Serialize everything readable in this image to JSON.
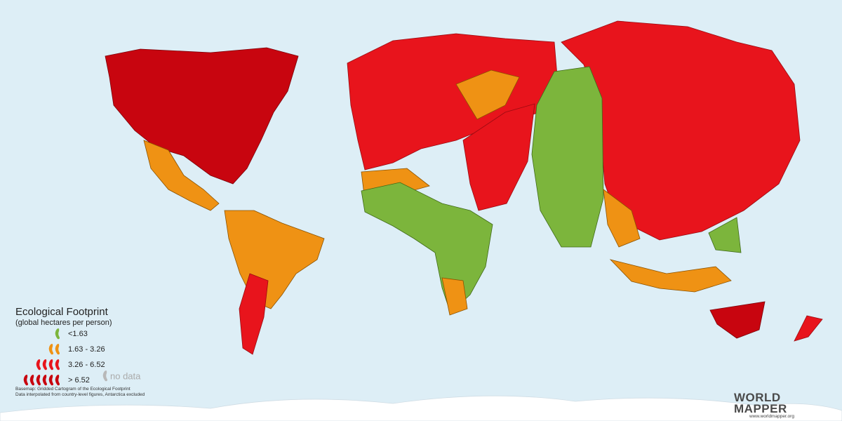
{
  "legend": {
    "title": "Ecological Footprint",
    "subtitle": "(global hectares per person)",
    "items": [
      {
        "label": "<1.63",
        "color": "#7cb53c"
      },
      {
        "label": "1.63 - 3.26",
        "color": "#ef9214"
      },
      {
        "label": "3.26 - 6.52",
        "color": "#e8141c"
      },
      {
        "label": "> 6.52",
        "color": "#c8050f"
      }
    ],
    "no_data": "no data"
  },
  "notes": [
    "Basemap: Gridded Cartogram of the Ecological Footprint",
    "Data interpolated from country-level figures, Antarctica excluded"
  ],
  "logo": {
    "line1": "WORLD",
    "line2": "MAPPER",
    "url": "www.worldmapper.org"
  }
}
